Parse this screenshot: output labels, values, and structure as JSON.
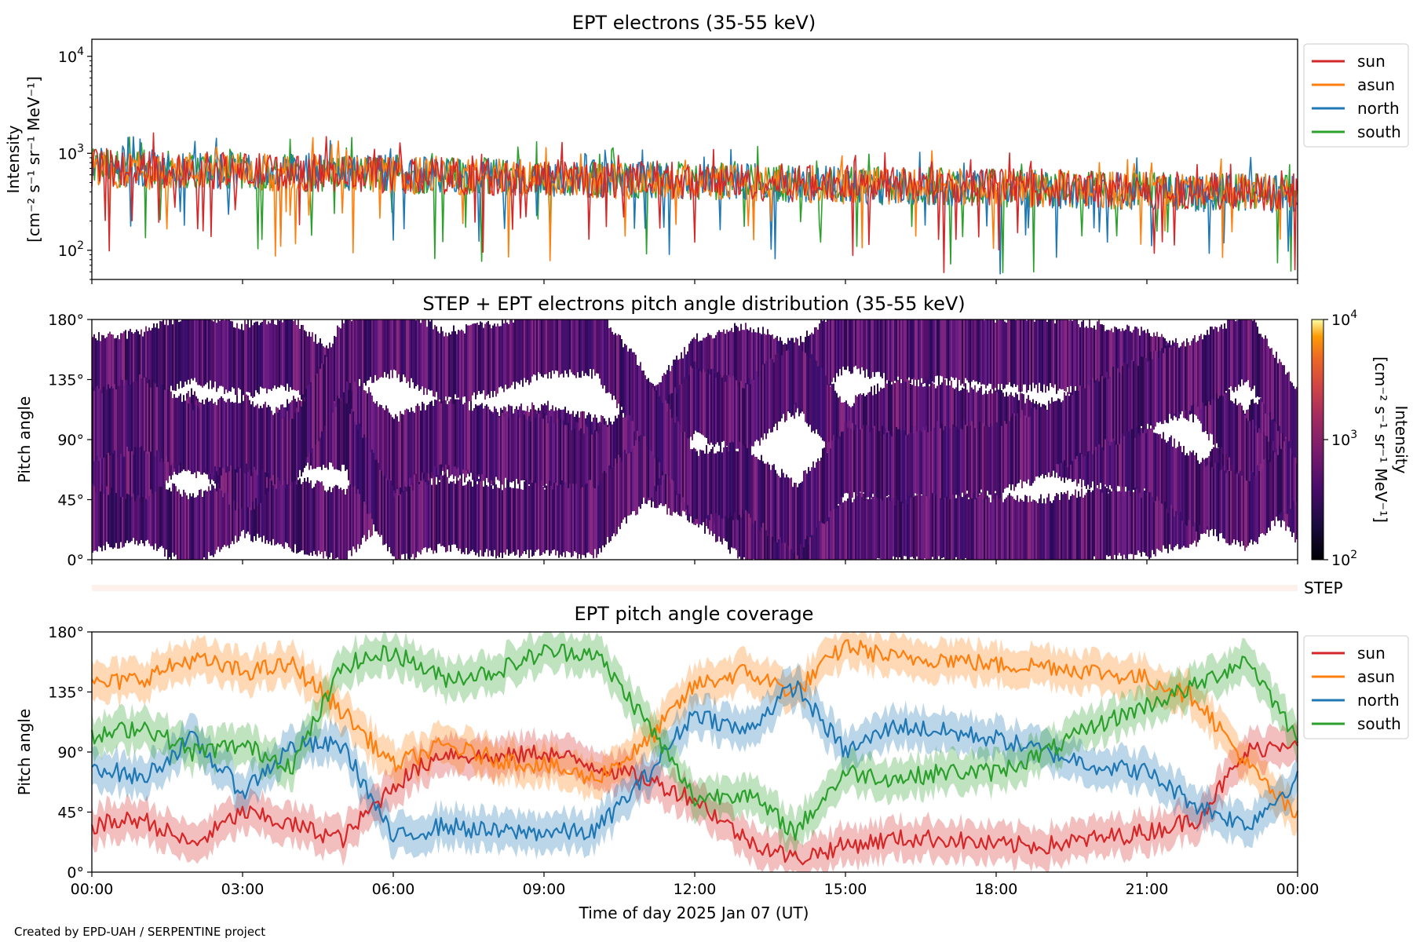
{
  "figure": {
    "credit": "Created by EPD-UAH / SERPENTINE project",
    "xlabel": "Time of day 2025 Jan 07 (UT)",
    "xticks": [
      "00:00",
      "03:00",
      "06:00",
      "09:00",
      "12:00",
      "15:00",
      "18:00",
      "21:00",
      "00:00"
    ],
    "step_label": "STEP"
  },
  "colors": {
    "sun": "#d62728",
    "asun": "#ff7f0e",
    "north": "#1f77b4",
    "south": "#2ca02c"
  },
  "chart_data": [
    {
      "type": "line",
      "title": "EPT electrons (35-55 keV)",
      "ylabel_line1": "Intensity",
      "ylabel_line2": "[cm⁻² s⁻¹ sr⁻¹ MeV⁻¹]",
      "yscale": "log",
      "ylim": [
        50,
        15000
      ],
      "yticks": [
        {
          "base": "10",
          "exp": "2",
          "value": 100
        },
        {
          "base": "10",
          "exp": "3",
          "value": 1000
        },
        {
          "base": "10",
          "exp": "4",
          "value": 10000
        }
      ],
      "x_hours": [
        0,
        24
      ],
      "legend_position": "outside right",
      "legend": [
        "sun",
        "asun",
        "north",
        "south"
      ],
      "series": [
        {
          "name": "sun",
          "x": [
            0,
            3,
            6,
            9,
            12,
            15,
            18,
            21,
            24
          ],
          "y": [
            700,
            650,
            600,
            560,
            520,
            480,
            450,
            420,
            400
          ]
        },
        {
          "name": "asun",
          "x": [
            0,
            3,
            6,
            9,
            12,
            15,
            18,
            21,
            24
          ],
          "y": [
            680,
            640,
            590,
            550,
            510,
            470,
            440,
            410,
            390
          ]
        },
        {
          "name": "north",
          "x": [
            0,
            3,
            6,
            9,
            12,
            15,
            18,
            21,
            24
          ],
          "y": [
            720,
            660,
            610,
            560,
            520,
            470,
            430,
            400,
            380
          ]
        },
        {
          "name": "south",
          "x": [
            0,
            3,
            6,
            9,
            12,
            15,
            18,
            21,
            24
          ],
          "y": [
            710,
            650,
            600,
            560,
            520,
            480,
            440,
            410,
            390
          ]
        }
      ]
    },
    {
      "type": "heatmap",
      "title": "STEP + EPT electrons pitch angle distribution (35-55 keV)",
      "ylabel": "Pitch angle",
      "yticks": [
        "0°",
        "45°",
        "90°",
        "135°",
        "180°"
      ],
      "ylim": [
        0,
        180
      ],
      "colorbar": {
        "label_line1": "Intensity",
        "label_line2": "[cm⁻² s⁻¹ sr⁻¹ MeV⁻¹]",
        "scale": "log",
        "range": [
          100,
          10000
        ],
        "ticks": [
          {
            "base": "10",
            "exp": "2"
          },
          {
            "base": "10",
            "exp": "3"
          },
          {
            "base": "10",
            "exp": "4"
          }
        ],
        "colormap": "inferno"
      },
      "typical_intensity": [
        400,
        700
      ]
    },
    {
      "type": "line",
      "title": "EPT pitch angle coverage",
      "ylabel": "Pitch angle",
      "yticks": [
        "0°",
        "45°",
        "90°",
        "135°",
        "180°"
      ],
      "ylim": [
        0,
        180
      ],
      "legend_position": "outside right",
      "legend": [
        "sun",
        "asun",
        "north",
        "south"
      ],
      "series": [
        {
          "name": "sun",
          "x": [
            0,
            1,
            2,
            3,
            4,
            5,
            6,
            7,
            8,
            9,
            10,
            11,
            12,
            13,
            14,
            15,
            16,
            17,
            18,
            19,
            20,
            21,
            22,
            23,
            24
          ],
          "y": [
            35,
            40,
            20,
            45,
            35,
            25,
            65,
            90,
            85,
            90,
            80,
            70,
            55,
            25,
            10,
            20,
            25,
            25,
            20,
            20,
            25,
            30,
            40,
            90,
            100
          ]
        },
        {
          "name": "asun",
          "x": [
            0,
            1,
            2,
            3,
            4,
            5,
            6,
            7,
            8,
            9,
            10,
            11,
            12,
            13,
            14,
            15,
            16,
            17,
            18,
            19,
            20,
            21,
            22,
            23,
            24
          ],
          "y": [
            140,
            145,
            160,
            150,
            155,
            120,
            80,
            95,
            85,
            80,
            70,
            95,
            140,
            150,
            135,
            170,
            160,
            160,
            155,
            155,
            150,
            145,
            130,
            80,
            40
          ]
        },
        {
          "name": "north",
          "x": [
            0,
            1,
            2,
            3,
            4,
            5,
            6,
            7,
            8,
            9,
            10,
            11,
            12,
            13,
            14,
            15,
            16,
            17,
            18,
            19,
            20,
            21,
            22,
            23,
            24
          ],
          "y": [
            80,
            70,
            100,
            60,
            95,
            95,
            25,
            35,
            30,
            30,
            30,
            70,
            120,
            105,
            140,
            90,
            110,
            105,
            100,
            90,
            80,
            75,
            50,
            35,
            70
          ]
        },
        {
          "name": "south",
          "x": [
            0,
            1,
            2,
            3,
            4,
            5,
            6,
            7,
            8,
            9,
            10,
            11,
            12,
            13,
            14,
            15,
            16,
            17,
            18,
            19,
            20,
            21,
            22,
            23,
            24
          ],
          "y": [
            100,
            110,
            90,
            95,
            80,
            155,
            165,
            145,
            150,
            165,
            165,
            115,
            55,
            60,
            30,
            75,
            70,
            75,
            75,
            90,
            110,
            125,
            140,
            160,
            100
          ]
        }
      ]
    }
  ]
}
